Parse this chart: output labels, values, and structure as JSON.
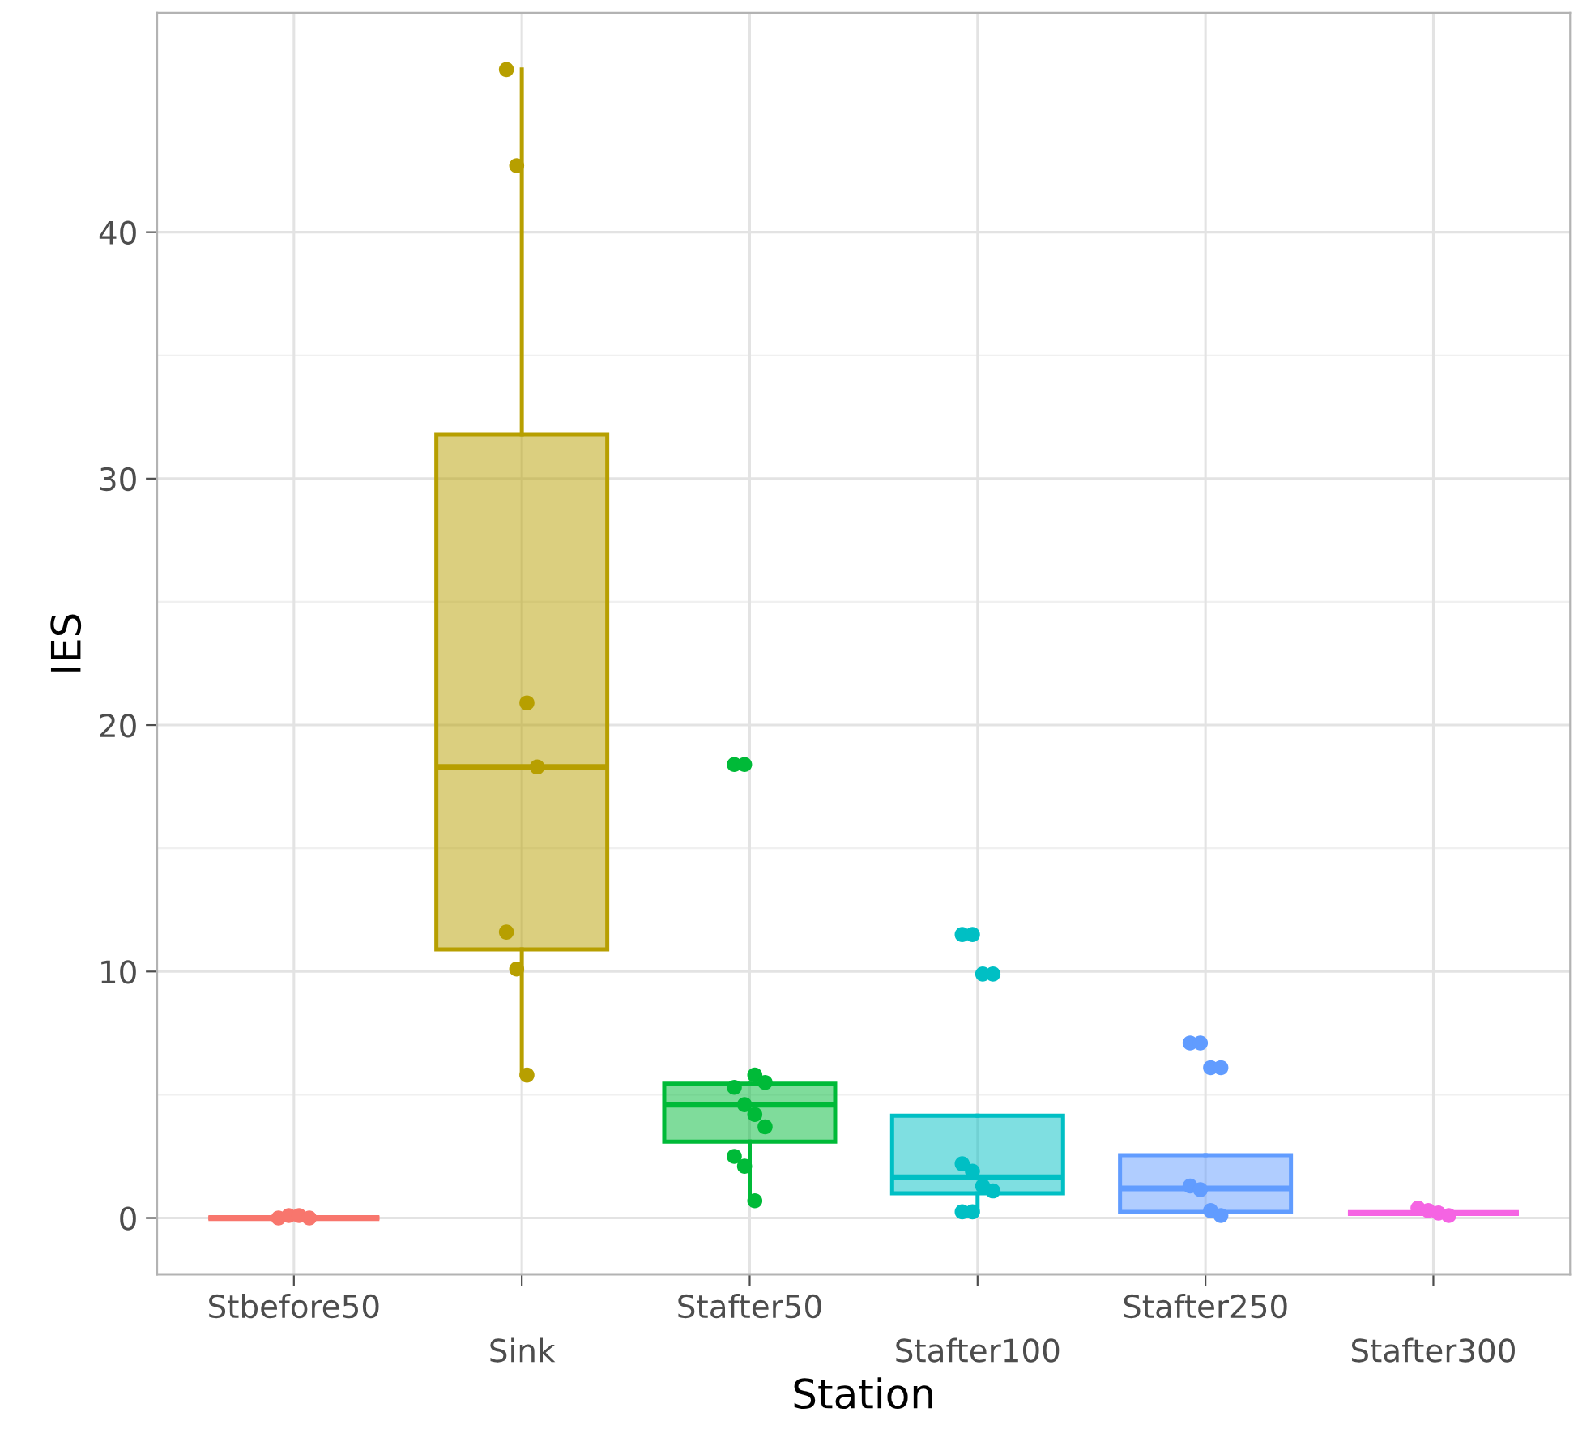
{
  "chart_data": {
    "type": "box",
    "xlabel": "Station",
    "ylabel": "IES",
    "categories": [
      "Stbefore50",
      "Sink",
      "Stafter50",
      "Stafter100",
      "Stafter250",
      "Stafter300"
    ],
    "colors": [
      "#f8766d",
      "#b79f00",
      "#00ba38",
      "#00bfc4",
      "#619cff",
      "#f564e3"
    ],
    "boxes": [
      {
        "low": 0,
        "q1": 0,
        "median": 0,
        "q3": 0,
        "high": 0
      },
      {
        "low": 5.8,
        "q1": 10.9,
        "median": 18.3,
        "q3": 31.8,
        "high": 46.6
      },
      {
        "low": 0.7,
        "q1": 3.1,
        "median": 4.6,
        "q3": 5.45,
        "high": 5.45
      },
      {
        "low": 0.25,
        "q1": 1.0,
        "median": 1.65,
        "q3": 4.15,
        "high": 4.15
      },
      {
        "low": 0.25,
        "q1": 0.25,
        "median": 1.2,
        "q3": 2.55,
        "high": 2.55
      },
      {
        "low": 0.2,
        "q1": 0.2,
        "median": 0.2,
        "q3": 0.2,
        "high": 0.2
      }
    ],
    "series": [
      {
        "type": "scatter",
        "x": [
          "Stbefore50",
          "Stbefore50",
          "Stbefore50",
          "Stbefore50",
          "Sink",
          "Sink",
          "Sink",
          "Sink",
          "Sink",
          "Sink",
          "Sink",
          "Stafter50",
          "Stafter50",
          "Stafter50",
          "Stafter50",
          "Stafter50",
          "Stafter50",
          "Stafter50",
          "Stafter50",
          "Stafter50",
          "Stafter50",
          "Stafter50",
          "Stafter100",
          "Stafter100",
          "Stafter100",
          "Stafter100",
          "Stafter100",
          "Stafter100",
          "Stafter100",
          "Stafter100",
          "Stafter100",
          "Stafter100",
          "Stafter250",
          "Stafter250",
          "Stafter250",
          "Stafter250",
          "Stafter250",
          "Stafter250",
          "Stafter250",
          "Stafter250",
          "Stafter300",
          "Stafter300",
          "Stafter300",
          "Stafter300"
        ],
        "values": [
          0,
          0.1,
          0.1,
          0,
          46.6,
          42.7,
          20.9,
          18.3,
          11.6,
          10.1,
          5.8,
          18.4,
          18.4,
          5.8,
          5.5,
          5.3,
          4.6,
          4.2,
          3.7,
          2.5,
          2.1,
          0.7,
          11.5,
          11.5,
          9.9,
          9.9,
          2.2,
          1.9,
          1.3,
          1.1,
          0.25,
          0.25,
          7.1,
          7.1,
          6.1,
          6.1,
          1.3,
          1.15,
          0.3,
          0.1,
          0.4,
          0.3,
          0.2,
          0.1
        ],
        "colors": [
          "#f8766d",
          "#f8766d",
          "#f8766d",
          "#f8766d",
          "#b79f00",
          "#b79f00",
          "#b79f00",
          "#b79f00",
          "#b79f00",
          "#b79f00",
          "#b79f00",
          "#00ba38",
          "#00ba38",
          "#00ba38",
          "#00ba38",
          "#00ba38",
          "#00ba38",
          "#00ba38",
          "#00ba38",
          "#00ba38",
          "#00ba38",
          "#00ba38",
          "#00bfc4",
          "#00bfc4",
          "#00bfc4",
          "#00bfc4",
          "#00bfc4",
          "#00bfc4",
          "#00bfc4",
          "#00bfc4",
          "#00bfc4",
          "#00bfc4",
          "#619cff",
          "#619cff",
          "#619cff",
          "#619cff",
          "#619cff",
          "#619cff",
          "#619cff",
          "#619cff",
          "#f564e3",
          "#f564e3",
          "#f564e3",
          "#f564e3"
        ]
      }
    ],
    "ylim": [
      -2.3,
      48.9
    ],
    "yticks": [
      0,
      10,
      20,
      30,
      40
    ],
    "grid": true
  }
}
